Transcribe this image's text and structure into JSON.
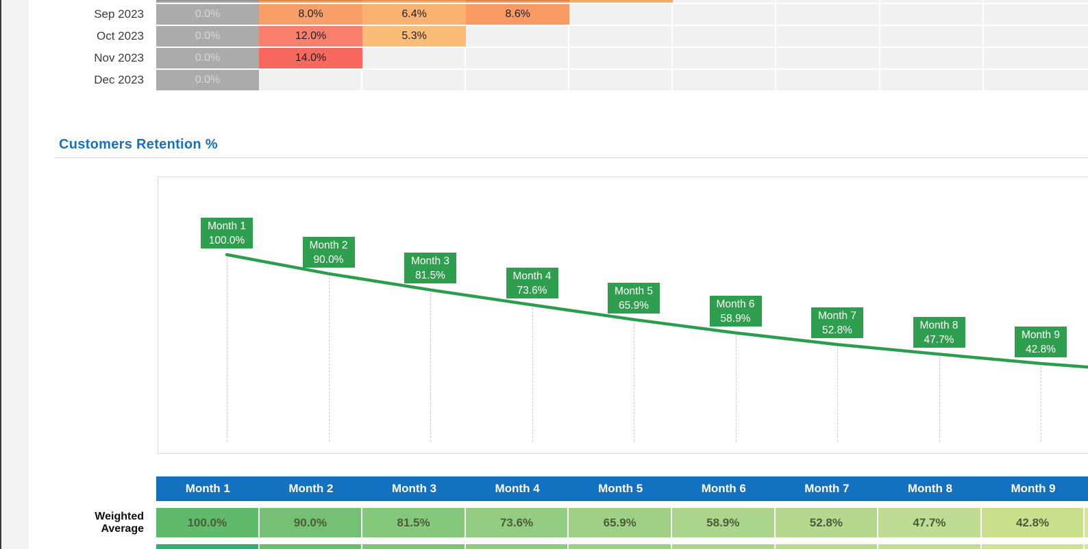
{
  "colors": {
    "header_blue": "#1371bf",
    "title_blue": "#176fc1",
    "line_green": "#2a9d4f",
    "label_green": "#2f9e4e",
    "gray_cell": "#ababab",
    "gray_cell_top": "#8f8f8f",
    "gray_cell_text": "#d8d8d8",
    "empty_cell": "#f1f1f1",
    "summary_value_text": "#4d5c38"
  },
  "cohort_table": {
    "first_column_value": "0.0%",
    "partial_top_row": {
      "cells": [
        {
          "color": "#f9a36a",
          "top_color": "#da8342"
        },
        {
          "color": "#faac6f",
          "top_color": "#e0934e"
        },
        {
          "color": "#f99c65",
          "top_color": "#da7f40"
        },
        {
          "color": "#fbb173",
          "top_color": "#eba55c"
        }
      ]
    },
    "rows": [
      {
        "label": "Sep 2023",
        "first": "0.0%",
        "values": [
          {
            "text": "8.0%",
            "color": "#f9a06a"
          },
          {
            "text": "6.4%",
            "color": "#fab273"
          },
          {
            "text": "8.6%",
            "color": "#f99a64"
          }
        ]
      },
      {
        "label": "Oct 2023",
        "first": "0.0%",
        "values": [
          {
            "text": "12.0%",
            "color": "#f87e6e"
          },
          {
            "text": "5.3%",
            "color": "#fbbc78"
          }
        ]
      },
      {
        "label": "Nov 2023",
        "first": "0.0%",
        "values": [
          {
            "text": "14.0%",
            "color": "#f8685f"
          }
        ]
      },
      {
        "label": "Dec 2023",
        "first": "0.0%",
        "values": []
      }
    ]
  },
  "section": {
    "title": "Customers Retention %"
  },
  "chart_data": {
    "type": "line",
    "title": "Customers Retention %",
    "categories": [
      "Month 1",
      "Month 2",
      "Month 3",
      "Month 4",
      "Month 5",
      "Month 6",
      "Month 7",
      "Month 8",
      "Month 9"
    ],
    "values": [
      100.0,
      90.0,
      81.5,
      73.6,
      65.9,
      58.9,
      52.8,
      47.7,
      42.8
    ],
    "value_labels": [
      "100.0%",
      "90.0%",
      "81.5%",
      "73.6%",
      "65.9%",
      "58.9%",
      "52.8%",
      "47.7%",
      "42.8%"
    ],
    "series_color": "#2a9d4f",
    "data_label_fill": "#2f9e4e",
    "grid": "drop-lines",
    "legend": "none",
    "axes_visible": false
  },
  "summary_table": {
    "headers": [
      "Month 1",
      "Month 2",
      "Month 3",
      "Month 4",
      "Month 5",
      "Month 6",
      "Month 7",
      "Month 8",
      "Month 9"
    ],
    "row_label": [
      "Weighted",
      "Average"
    ],
    "values": [
      {
        "text": "100.0%",
        "color": "#5fba6b"
      },
      {
        "text": "90.0%",
        "color": "#74c175"
      },
      {
        "text": "81.5%",
        "color": "#84c87c"
      },
      {
        "text": "73.6%",
        "color": "#93cd81"
      },
      {
        "text": "65.9%",
        "color": "#9ed184"
      },
      {
        "text": "58.9%",
        "color": "#aad58a"
      },
      {
        "text": "52.8%",
        "color": "#b4d98e"
      },
      {
        "text": "47.7%",
        "color": "#bfdc92"
      },
      {
        "text": "42.8%",
        "color": "#c9df8c"
      }
    ],
    "edge_sliver_color": "#d6e695",
    "next_row_colors": [
      "#36ad72",
      "#6abc6f",
      "#7dc478",
      "#8fca7f",
      "#9ed084",
      "#add68c",
      "#b8da90",
      "#c3de94",
      "#cce295"
    ],
    "next_row_sliver_color": "#d6e69a"
  }
}
